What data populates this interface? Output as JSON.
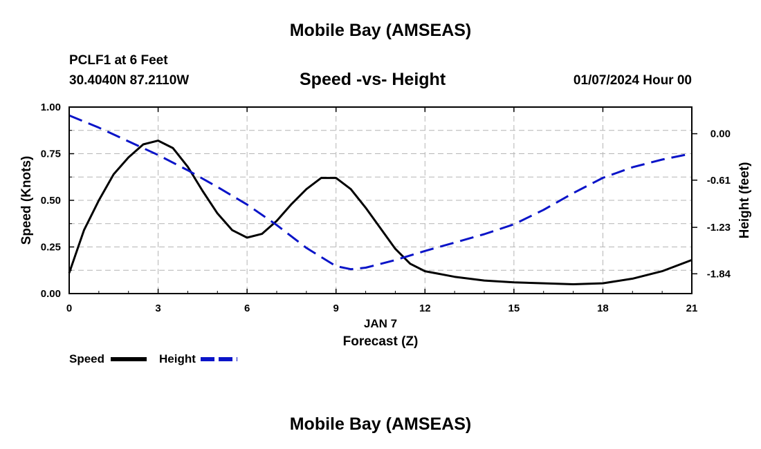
{
  "header": {
    "title": "Mobile Bay (AMSEAS)",
    "station": "PCLF1 at 6 Feet",
    "coords": "30.4040N  87.2110W",
    "subtitle": "Speed -vs- Height",
    "datetime": "01/07/2024 Hour 00"
  },
  "footer": {
    "title": "Mobile Bay (AMSEAS)"
  },
  "chart_data": {
    "type": "line",
    "title": "Speed -vs- Height",
    "xlabel": "Forecast (Z)",
    "xlabel_date": "JAN 7",
    "xlim": [
      0,
      21
    ],
    "xticks": [
      0,
      3,
      6,
      9,
      12,
      15,
      18,
      21
    ],
    "xtick_labels": [
      "0",
      "3",
      "6",
      "9",
      "12",
      "15",
      "18",
      "21"
    ],
    "ylabel_left": "Speed (Knots)",
    "ylim_left": [
      0,
      1
    ],
    "yticks_left": [
      0,
      0.25,
      0.5,
      0.75,
      1.0
    ],
    "ytick_labels_left": [
      "0.00",
      "0.25",
      "0.50",
      "0.75",
      "1.00"
    ],
    "ylabel_right": "Height (feet)",
    "ylim_right": [
      -2.1,
      0.35
    ],
    "yticks_right": [
      0.0,
      -0.61,
      -1.23,
      -1.84
    ],
    "ytick_labels_right": [
      "0.00",
      "-0.61",
      "-1.23",
      "-1.84"
    ],
    "grid": true,
    "series": [
      {
        "name": "Speed",
        "axis": "left",
        "color": "#000000",
        "style": "solid",
        "x": [
          0,
          0.5,
          1,
          1.5,
          2,
          2.5,
          3,
          3.5,
          4,
          4.5,
          5,
          5.5,
          6,
          6.5,
          7,
          7.5,
          8,
          8.5,
          9,
          9.5,
          10,
          10.5,
          11,
          11.5,
          12,
          13,
          14,
          15,
          16,
          17,
          18,
          19,
          20,
          21
        ],
        "values": [
          0.11,
          0.34,
          0.5,
          0.64,
          0.73,
          0.8,
          0.82,
          0.78,
          0.68,
          0.55,
          0.43,
          0.34,
          0.3,
          0.32,
          0.39,
          0.48,
          0.56,
          0.62,
          0.62,
          0.56,
          0.46,
          0.35,
          0.24,
          0.16,
          0.12,
          0.09,
          0.07,
          0.06,
          0.055,
          0.05,
          0.055,
          0.08,
          0.12,
          0.18
        ]
      },
      {
        "name": "Height",
        "axis": "right",
        "color": "#0a14c8",
        "style": "dashed",
        "x": [
          0,
          1,
          2,
          3,
          4,
          5,
          6,
          7,
          8,
          9,
          9.5,
          10,
          11,
          12,
          13,
          14,
          15,
          16,
          17,
          18,
          19,
          20,
          21
        ],
        "values": [
          0.24,
          0.08,
          -0.1,
          -0.28,
          -0.48,
          -0.7,
          -0.93,
          -1.2,
          -1.5,
          -1.74,
          -1.78,
          -1.76,
          -1.66,
          -1.54,
          -1.43,
          -1.32,
          -1.19,
          -1.0,
          -0.78,
          -0.58,
          -0.44,
          -0.34,
          -0.26
        ]
      }
    ],
    "legend": {
      "position": "bottom-left",
      "entries": [
        "Speed",
        "Height"
      ]
    }
  }
}
